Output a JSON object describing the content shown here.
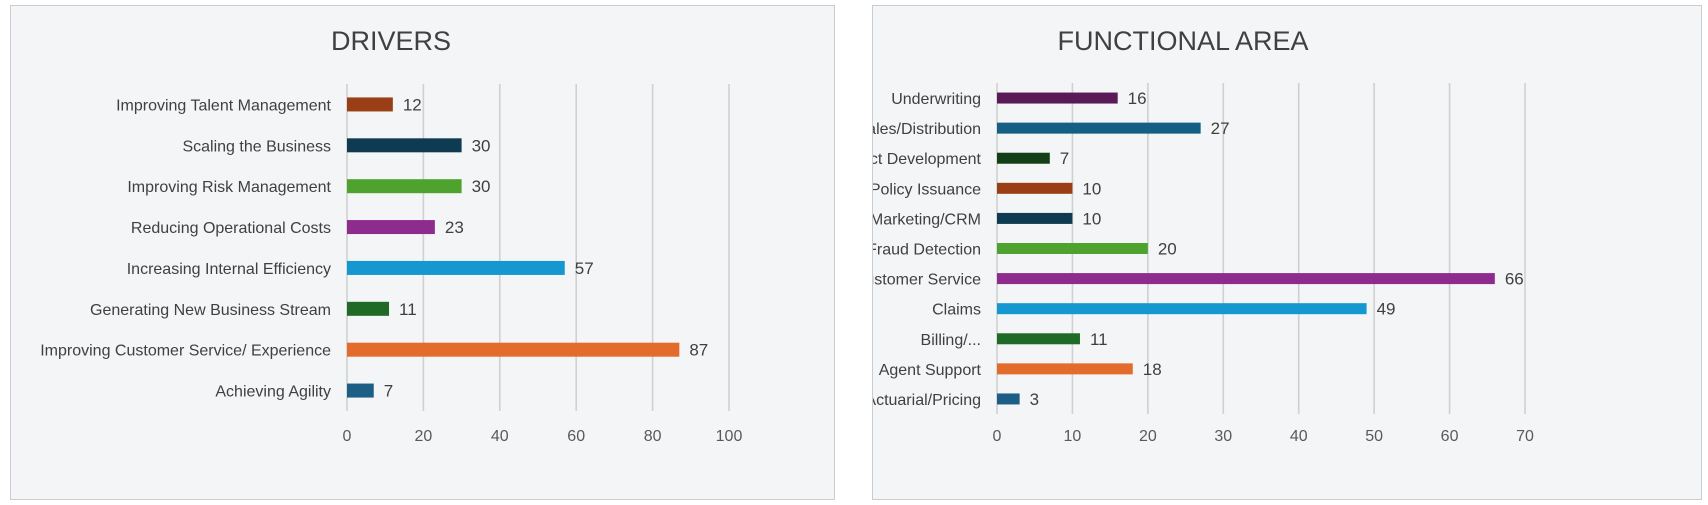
{
  "chart_data": [
    {
      "type": "bar",
      "orientation": "horizontal",
      "title": "DRIVERS",
      "categories": [
        "Improving Talent Management",
        "Scaling the Business",
        "Improving Risk Management",
        "Reducing Operational Costs",
        "Increasing Internal Efficiency",
        "Generating New Business Stream",
        "Improving Customer Service/ Experience",
        "Achieving Agility"
      ],
      "values": [
        12,
        30,
        30,
        23,
        57,
        11,
        87,
        7
      ],
      "colors": [
        "#9a3e16",
        "#0e3a52",
        "#4ea32f",
        "#8e2b8e",
        "#1597cf",
        "#1f6b26",
        "#e36b2c",
        "#1c5e86"
      ],
      "xlim": [
        0,
        100
      ],
      "ticks": [
        0,
        20,
        40,
        60,
        80,
        100
      ],
      "grid": true,
      "xlabel": "",
      "ylabel": ""
    },
    {
      "type": "bar",
      "orientation": "horizontal",
      "title": "FUNCTIONAL AREA",
      "categories": [
        "Underwriting",
        "Sales/Distribution",
        "Product Development",
        "Policy Issuance",
        "Marketing/CRM",
        "Fraud Detection",
        "Customer Service",
        "Claims",
        "Billing/...",
        "Agent Support",
        "Actuarial/Pricing"
      ],
      "values": [
        16,
        27,
        7,
        10,
        10,
        20,
        66,
        49,
        11,
        18,
        3
      ],
      "colors": [
        "#5a1a58",
        "#155f84",
        "#133f16",
        "#9a3e16",
        "#0e3a52",
        "#4ea32f",
        "#8e2b8e",
        "#1597cf",
        "#1f6b26",
        "#e36b2c",
        "#1c5e86"
      ],
      "xlim": [
        0,
        70
      ],
      "ticks": [
        0,
        10,
        20,
        30,
        40,
        50,
        60,
        70
      ],
      "grid": true,
      "xlabel": "",
      "ylabel": ""
    }
  ]
}
